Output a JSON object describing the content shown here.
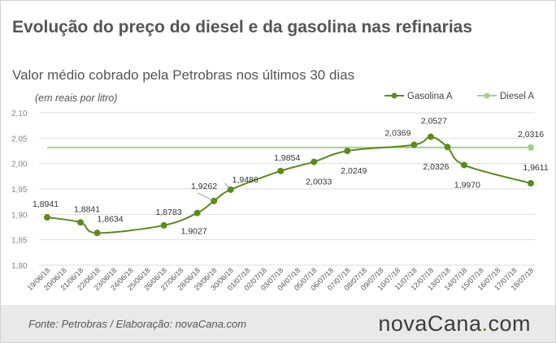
{
  "header": {
    "title": "Evolução do preço do diesel e da gasolina nas refinarias",
    "subtitle": "Valor médio cobrado pela Petrobras nos últimos 30 dias",
    "unit": "(em reais por litro)"
  },
  "footer": {
    "source": "Fonte: Petrobras / Elaboração: novaCana.com",
    "brand_main": "novaCana",
    "brand_dot": ".",
    "brand_tld": "com"
  },
  "colors": {
    "gasolina": "#5b8a1b",
    "diesel": "#9fd38a",
    "grid": "#dddddd",
    "text": "#555555"
  },
  "chart_data": {
    "type": "line",
    "title": "Evolução do preço do diesel e da gasolina nas refinarias",
    "subtitle": "Valor médio cobrado pela Petrobras nos últimos 30 dias",
    "ylabel": "(em reais por litro)",
    "xlabel": "",
    "ylim": [
      1.8,
      2.1
    ],
    "yticks": [
      "2,10",
      "2,05",
      "2,00",
      "1,95",
      "1,90",
      "1,85",
      "1,80"
    ],
    "grid": true,
    "legend_position": "top-right",
    "x": [
      "19/06/18",
      "20/06/18",
      "21/06/18",
      "22/06/18",
      "23/06/18",
      "24/06/18",
      "25/06/18",
      "26/06/18",
      "27/06/18",
      "28/06/18",
      "29/06/18",
      "30/06/18",
      "01/07/18",
      "02/07/18",
      "03/07/18",
      "04/07/18",
      "05/07/18",
      "06/07/18",
      "07/07/18",
      "08/07/18",
      "09/07/18",
      "10/07/18",
      "11/07/18",
      "12/07/18",
      "13/07/18",
      "14/07/18",
      "15/07/18",
      "16/07/18",
      "17/07/18",
      "18/07/18"
    ],
    "series": [
      {
        "name": "Gasolina A",
        "points": [
          {
            "x": "19/06/18",
            "y": 1.8941,
            "label": "1,8941"
          },
          {
            "x": "21/06/18",
            "y": 1.8841,
            "label": "1,8841"
          },
          {
            "x": "22/06/18",
            "y": 1.8634,
            "label": "1,8634"
          },
          {
            "x": "26/06/18",
            "y": 1.8783,
            "label": "1,8783"
          },
          {
            "x": "28/06/18",
            "y": 1.9027,
            "label": "1,9027"
          },
          {
            "x": "29/06/18",
            "y": 1.9262,
            "label": "1,9262"
          },
          {
            "x": "30/06/18",
            "y": 1.9486,
            "label": "1,9486"
          },
          {
            "x": "03/07/18",
            "y": 1.9854,
            "label": "1,9854"
          },
          {
            "x": "05/07/18",
            "y": 2.0033,
            "label": "2,0033"
          },
          {
            "x": "07/07/18",
            "y": 2.0249,
            "label": "2,0249"
          },
          {
            "x": "11/07/18",
            "y": 2.0369,
            "label": "2,0369"
          },
          {
            "x": "12/07/18",
            "y": 2.0527,
            "label": "2,0527"
          },
          {
            "x": "13/07/18",
            "y": 2.0326,
            "label": "2,0326"
          },
          {
            "x": "14/07/18",
            "y": 1.997,
            "label": "1,9970"
          },
          {
            "x": "18/07/18",
            "y": 1.9611,
            "label": "1,9611"
          }
        ]
      },
      {
        "name": "Diesel A",
        "points": [
          {
            "x": "19/06/18",
            "y": 2.0316,
            "label": ""
          },
          {
            "x": "18/07/18",
            "y": 2.0316,
            "label": "2,0316"
          }
        ]
      }
    ]
  }
}
